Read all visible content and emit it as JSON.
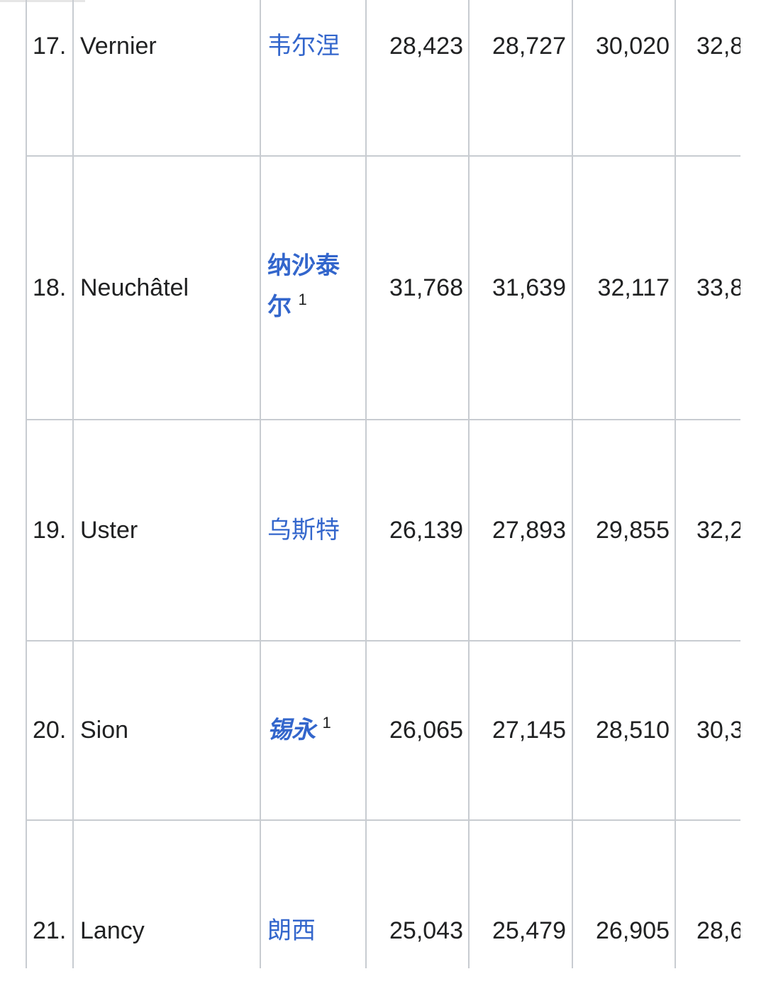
{
  "table": {
    "rows": [
      {
        "rank": "17.",
        "name": "Vernier",
        "zh": "韦尔涅",
        "zh_style": "normal",
        "note": "",
        "v1": "28,423",
        "v2": "28,727",
        "v3": "30,020",
        "v4": "32,8"
      },
      {
        "rank": "18.",
        "name": "Neuchâtel",
        "zh": "纳沙泰尔",
        "zh_style": "bold",
        "note": "1",
        "v1": "31,768",
        "v2": "31,639",
        "v3": "32,117",
        "v4": "33,8"
      },
      {
        "rank": "19.",
        "name": "Uster",
        "zh": "乌斯特",
        "zh_style": "normal",
        "note": "",
        "v1": "26,139",
        "v2": "27,893",
        "v3": "29,855",
        "v4": "32,2"
      },
      {
        "rank": "20.",
        "name": "Sion",
        "zh": "锡永",
        "zh_style": "bold-italic",
        "note": "1",
        "v1": "26,065",
        "v2": "27,145",
        "v3": "28,510",
        "v4": "30,3"
      },
      {
        "rank": "21.",
        "name": "Lancy",
        "zh": "朗西",
        "zh_style": "normal",
        "note": "",
        "v1": "25,043",
        "v2": "25,479",
        "v3": "26,905",
        "v4": "28,6"
      }
    ]
  },
  "colors": {
    "link": "#3366cc",
    "text": "#202122",
    "border": "#c8ccd1"
  }
}
